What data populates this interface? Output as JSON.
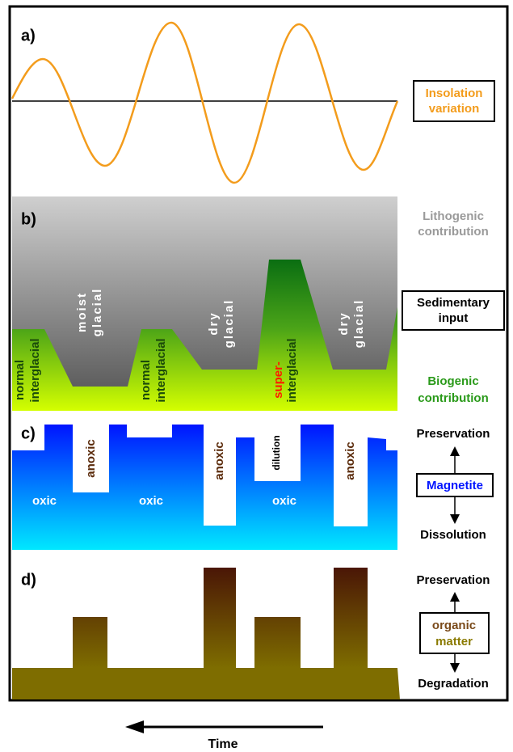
{
  "panels": [
    {
      "label": "a)",
      "side": {
        "box": [
          "Insolation",
          "variation"
        ]
      }
    },
    {
      "label": "b)",
      "stages": [
        "normal",
        "interglacial",
        "moist",
        "glacial",
        "normal",
        "interglacial",
        "dry",
        "glacial",
        "super-",
        "interglacial",
        "dry",
        "glacial"
      ],
      "side": {
        "top": [
          "Lithogenic",
          "contribution"
        ],
        "box": [
          "Sedimentary",
          "input"
        ],
        "bottom": [
          "Biogenic",
          "contribution"
        ]
      }
    },
    {
      "label": "c)",
      "states": [
        "oxic",
        "anoxic",
        "oxic",
        "anoxic",
        "dilution",
        "oxic",
        "anoxic"
      ],
      "side": {
        "top": "Preservation",
        "box": "Magnetite",
        "bottom": "Dissolution"
      }
    },
    {
      "label": "d)",
      "side": {
        "top": "Preservation",
        "box": [
          "organic",
          "matter"
        ],
        "bottom": "Degradation"
      }
    }
  ],
  "axis": {
    "label": "Time"
  }
}
